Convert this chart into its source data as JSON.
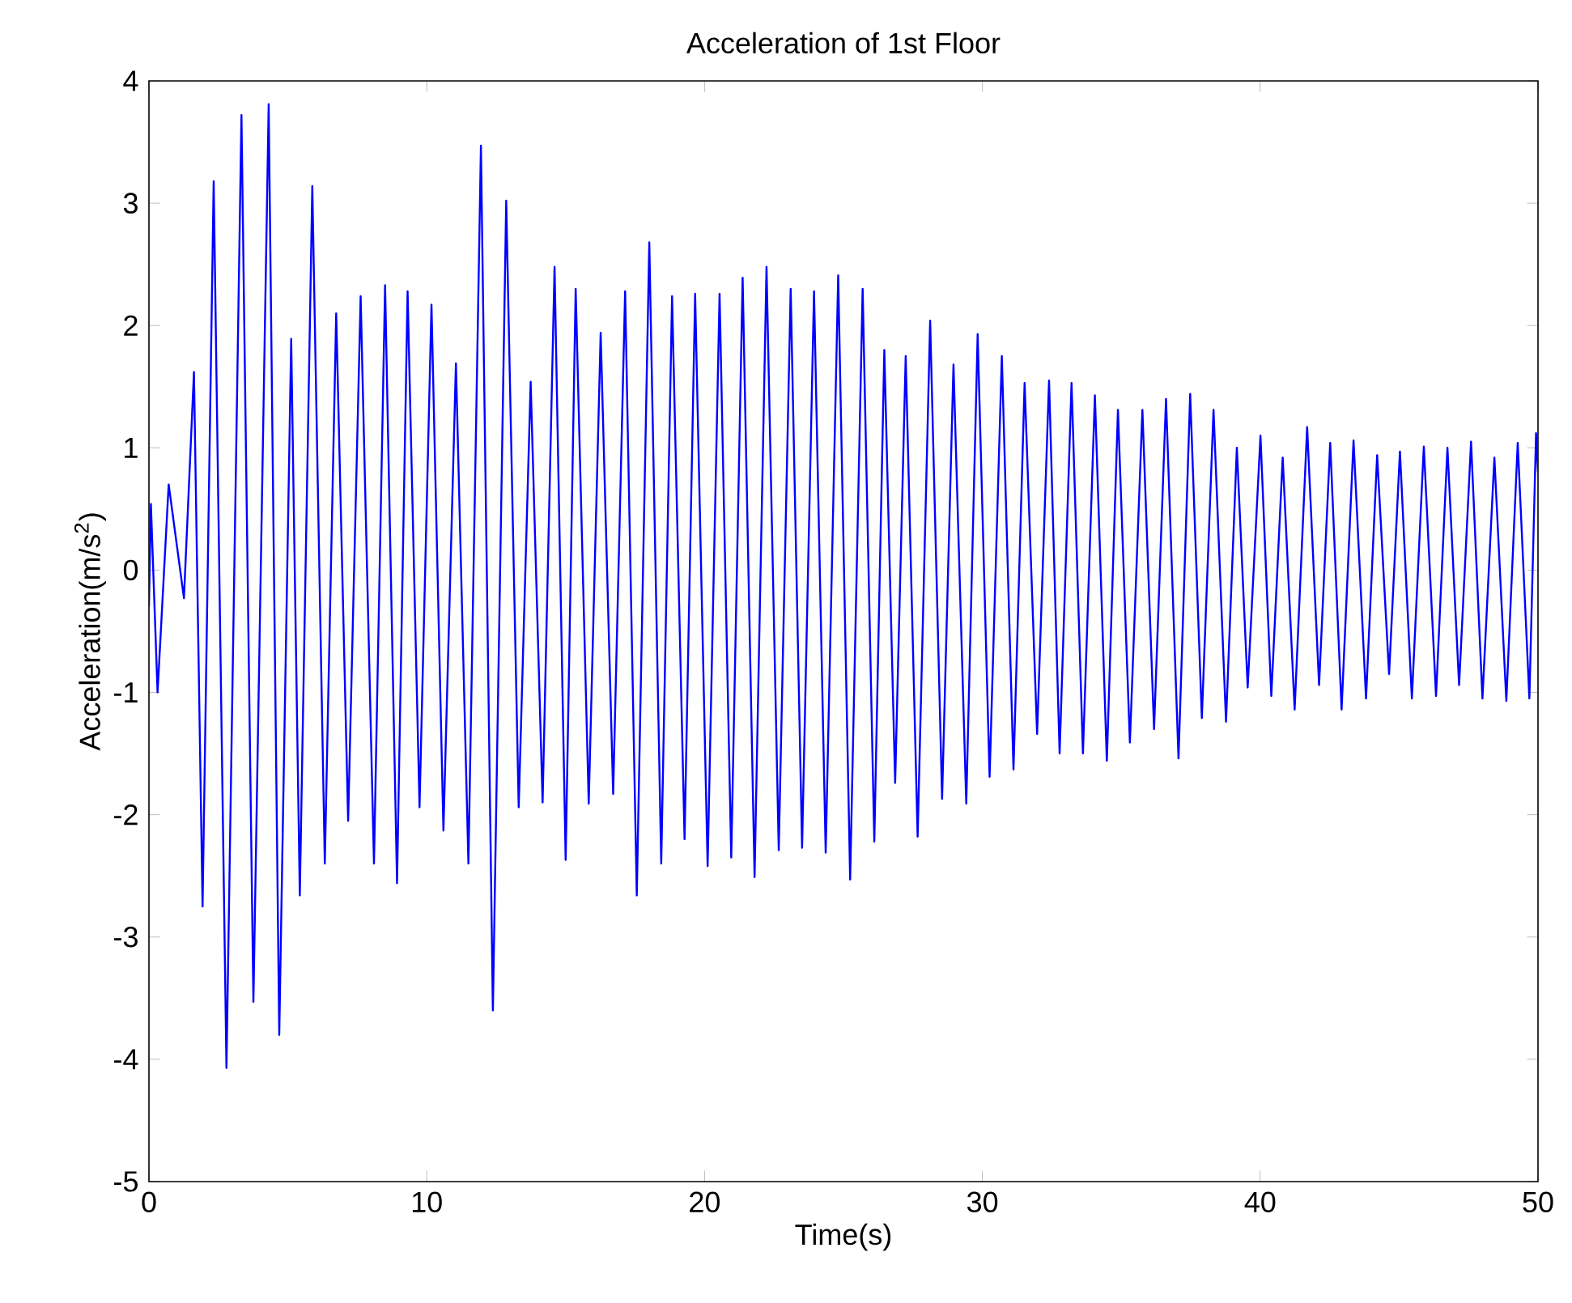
{
  "chart_data": {
    "type": "line",
    "title": "Acceleration of 1st Floor",
    "xlabel": "Time(s)",
    "ylabel": "Acceleration(m/s$^{2}$)",
    "xlim": [
      0,
      50
    ],
    "ylim": [
      -5,
      4
    ],
    "xticks": [
      0,
      10,
      20,
      30,
      40,
      50
    ],
    "yticks": [
      -5,
      -4,
      -3,
      -2,
      -1,
      0,
      1,
      2,
      3,
      4
    ],
    "grid": false,
    "marker": "none",
    "line_style": "solid",
    "series": [
      {
        "color": "#0000ff",
        "x": [
          0,
          0.07,
          0.31,
          0.71,
          1.26,
          1.62,
          1.93,
          2.33,
          2.79,
          3.33,
          3.76,
          4.31,
          4.69,
          5.12,
          5.43,
          5.88,
          6.33,
          6.74,
          7.17,
          7.62,
          8.1,
          8.5,
          8.93,
          9.31,
          9.74,
          10.17,
          10.6,
          11.05,
          11.5,
          11.95,
          12.38,
          12.86,
          13.31,
          13.74,
          14.17,
          14.6,
          15.0,
          15.36,
          15.83,
          16.26,
          16.71,
          17.14,
          17.56,
          18.01,
          18.44,
          18.83,
          19.28,
          19.66,
          20.11,
          20.54,
          20.96,
          21.37,
          21.8,
          22.23,
          22.67,
          23.1,
          23.51,
          23.94,
          24.36,
          24.81,
          25.24,
          25.69,
          26.11,
          26.47,
          26.86,
          27.24,
          27.67,
          28.12,
          28.55,
          28.96,
          29.42,
          29.83,
          30.26,
          30.7,
          31.12,
          31.52,
          31.97,
          32.4,
          32.78,
          33.21,
          33.62,
          34.05,
          34.48,
          34.88,
          35.31,
          35.76,
          36.18,
          36.61,
          37.06,
          37.48,
          37.9,
          38.32,
          38.77,
          39.16,
          39.55,
          40.01,
          40.4,
          40.81,
          41.24,
          41.69,
          42.12,
          42.52,
          42.93,
          43.36,
          43.81,
          44.21,
          44.64,
          45.03,
          45.46,
          45.89,
          46.33,
          46.74,
          47.16,
          47.59,
          48.0,
          48.43,
          48.86,
          49.27,
          49.69,
          49.93,
          50
        ],
        "values": [
          -0.3,
          0.54,
          -1.0,
          0.7,
          -0.23,
          1.62,
          -2.75,
          3.18,
          -4.07,
          3.72,
          -3.53,
          3.81,
          -3.8,
          1.89,
          -2.66,
          3.14,
          -2.4,
          2.1,
          -2.05,
          2.24,
          -2.4,
          2.33,
          -2.56,
          2.28,
          -1.94,
          2.17,
          -2.13,
          1.69,
          -2.4,
          3.47,
          -3.6,
          3.02,
          -1.94,
          1.54,
          -1.9,
          2.48,
          -2.37,
          2.3,
          -1.91,
          1.94,
          -1.83,
          2.28,
          -2.66,
          2.68,
          -2.4,
          2.24,
          -2.2,
          2.26,
          -2.42,
          2.26,
          -2.35,
          2.39,
          -2.51,
          2.48,
          -2.29,
          2.3,
          -2.27,
          2.28,
          -2.31,
          2.41,
          -2.53,
          2.3,
          -2.22,
          1.8,
          -1.74,
          1.75,
          -2.18,
          2.04,
          -1.87,
          1.68,
          -1.91,
          1.93,
          -1.69,
          1.75,
          -1.63,
          1.53,
          -1.34,
          1.55,
          -1.5,
          1.53,
          -1.5,
          1.43,
          -1.56,
          1.31,
          -1.41,
          1.31,
          -1.3,
          1.4,
          -1.54,
          1.44,
          -1.21,
          1.31,
          -1.24,
          1.0,
          -0.96,
          1.1,
          -1.03,
          0.92,
          -1.14,
          1.17,
          -0.94,
          1.04,
          -1.14,
          1.06,
          -1.05,
          0.94,
          -0.85,
          0.97,
          -1.05,
          1.01,
          -1.03,
          1.0,
          -0.94,
          1.05,
          -1.05,
          0.92,
          -1.07,
          1.04,
          -1.05,
          1.12,
          0.8
        ]
      }
    ]
  }
}
